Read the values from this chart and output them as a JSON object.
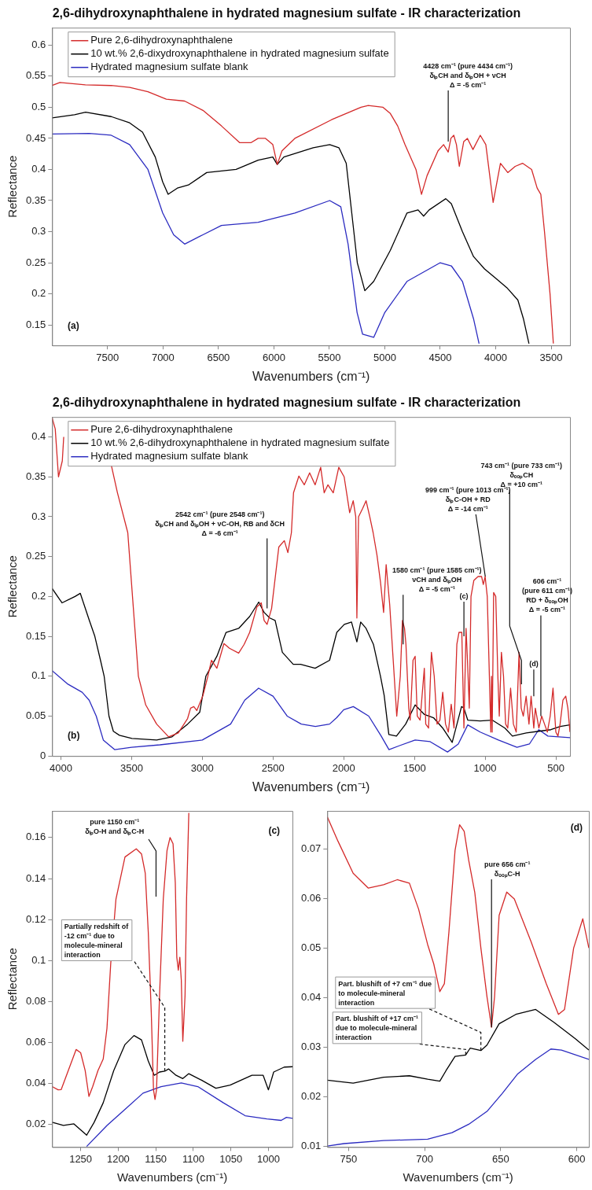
{
  "chart_data": [
    {
      "type": "line",
      "title": "2,6-dihydroxynaphthalene in hydrated magnesium sulfate - IR characterization",
      "xlabel": "Wavenumbers (cm⁻¹)",
      "ylabel": "Reflectance",
      "xlim": [
        8000,
        3330
      ],
      "ylim": [
        0.117,
        0.628
      ],
      "xticks": [
        7500,
        7000,
        6500,
        6000,
        5500,
        5000,
        4500,
        4000,
        3500
      ],
      "yticks": [
        0.15,
        0.2,
        0.25,
        0.3,
        0.35,
        0.4,
        0.45,
        0.5,
        0.55,
        0.6
      ],
      "legend": "top left",
      "annotations": [
        {
          "text": "4428 cm⁻¹ (pure 4434 cm⁻¹)\nδᵢₚCH and δᵢₚOH + νCH\nΔ = -5 cm⁻¹",
          "x": 4428,
          "y": 0.445
        },
        "(a)"
      ],
      "series": [
        {
          "name": "Pure 2,6-dihydroxynaphthalene",
          "color": "#d42a2a",
          "x": [
            8000,
            7930,
            7700,
            7467,
            7300,
            7136,
            6970,
            6805,
            6640,
            6473,
            6308,
            6208,
            6142,
            6076,
            6010,
            5970,
            5927,
            5811,
            5480,
            5215,
            5149,
            5016,
            4950,
            4884,
            4818,
            4719,
            4669,
            4619,
            4520,
            4470,
            4428,
            4404,
            4378,
            4354,
            4328,
            4288,
            4255,
            4205,
            4139,
            4089,
            4023,
            3957,
            3891,
            3824,
            3758,
            3676,
            3626,
            3593,
            3560,
            3510,
            3480
          ],
          "values": [
            0.535,
            0.54,
            0.536,
            0.535,
            0.532,
            0.525,
            0.513,
            0.51,
            0.495,
            0.47,
            0.443,
            0.443,
            0.45,
            0.45,
            0.44,
            0.408,
            0.43,
            0.45,
            0.48,
            0.5,
            0.503,
            0.5,
            0.49,
            0.47,
            0.44,
            0.4,
            0.36,
            0.39,
            0.43,
            0.44,
            0.428,
            0.45,
            0.455,
            0.44,
            0.405,
            0.445,
            0.45,
            0.432,
            0.455,
            0.44,
            0.347,
            0.41,
            0.395,
            0.405,
            0.41,
            0.4,
            0.37,
            0.36,
            0.3,
            0.2,
            0.12
          ]
        },
        {
          "name": "10 wt.% 2,6-dixydroxynaphthalene in hydrated magnesium sulfate",
          "color": "#000000",
          "x": [
            8000,
            7798,
            7698,
            7467,
            7301,
            7185,
            7070,
            7003,
            6954,
            6871,
            6771,
            6606,
            6341,
            6142,
            6010,
            5970,
            5910,
            5646,
            5497,
            5414,
            5348,
            5298,
            5248,
            5180,
            5100,
            4950,
            4800,
            4700,
            4650,
            4600,
            4450,
            4400,
            4300,
            4200,
            4100,
            4000,
            3900,
            3800,
            3750,
            3700
          ],
          "values": [
            0.483,
            0.488,
            0.492,
            0.485,
            0.475,
            0.46,
            0.42,
            0.38,
            0.36,
            0.37,
            0.375,
            0.395,
            0.4,
            0.415,
            0.42,
            0.408,
            0.42,
            0.435,
            0.44,
            0.435,
            0.41,
            0.33,
            0.25,
            0.205,
            0.22,
            0.27,
            0.33,
            0.335,
            0.325,
            0.335,
            0.353,
            0.345,
            0.3,
            0.26,
            0.24,
            0.225,
            0.21,
            0.19,
            0.16,
            0.12
          ]
        },
        {
          "name": "Hydrated magnesium sulfate blank",
          "color": "#2b2bc0",
          "x": [
            8000,
            7665,
            7467,
            7301,
            7136,
            7003,
            6904,
            6805,
            6640,
            6473,
            6142,
            5811,
            5497,
            5397,
            5331,
            5250,
            5200,
            5100,
            5000,
            4800,
            4500,
            4400,
            4300,
            4200,
            4150
          ],
          "values": [
            0.457,
            0.458,
            0.455,
            0.44,
            0.4,
            0.33,
            0.295,
            0.28,
            0.295,
            0.31,
            0.315,
            0.33,
            0.35,
            0.34,
            0.28,
            0.17,
            0.135,
            0.13,
            0.17,
            0.22,
            0.25,
            0.245,
            0.22,
            0.16,
            0.12
          ]
        }
      ]
    },
    {
      "type": "line",
      "title": "2,6-dihydroxynaphthalene in hydrated magnesium sulfate - IR characterization",
      "xlabel": "Wavenumbers (cm⁻¹)",
      "ylabel": "Reflectance",
      "xlim": [
        4062,
        400
      ],
      "ylim": [
        0,
        0.425
      ],
      "xticks": [
        4000,
        3500,
        3000,
        2500,
        2000,
        1500,
        1000,
        500
      ],
      "yticks": [
        0,
        0.05,
        0.1,
        0.15,
        0.2,
        0.25,
        0.3,
        0.35,
        0.4
      ],
      "legend": "top left",
      "annotations": [
        {
          "text": "2542 cm⁻¹ (pure 2548 cm⁻¹)\nδᵢₚCH and δᵢₚOH + νC-OH, RB and δCH\nΔ = -6 cm⁻¹",
          "x": 2542,
          "y": 0.185
        },
        {
          "text": "1580 cm⁻¹ (pure 1585 cm⁻¹)\nνCH and δᵢₚOH\nΔ = -5 cm⁻¹",
          "x": 1580,
          "y": 0.14
        },
        {
          "text": "999 cm⁻¹ (pure 1013 cm⁻¹)\nδᵢₚC-OH + RD\nΔ = -14 cm⁻¹",
          "x": 999,
          "y": 0.225
        },
        {
          "text": "743 cm⁻¹ (pure 733 cm⁻¹)\nδₒₒₚCH\nΔ = +10 cm⁻¹",
          "x": 743,
          "y": 0.09
        },
        {
          "text": "606 cm⁻¹\n(pure 611 cm⁻¹)\nRD + δₒₒₚOH\nΔ = -5 cm⁻¹",
          "x": 606,
          "y": 0.05
        },
        {
          "text": "(c)",
          "x": 1150,
          "y": 0.15
        },
        {
          "text": "(d)",
          "x": 656,
          "y": 0.075
        },
        "(b)"
      ],
      "series": [
        {
          "name": "Pure 2,6-dihydroxynaphthalene",
          "color": "#d42a2a",
          "x": [
            4062,
            4040,
            4017,
            3990,
            3980,
            3800,
            3644,
            3600,
            3527,
            3452,
            3400,
            3323,
            3238,
            3170,
            3104,
            3083,
            3060,
            3039,
            2995,
            2961,
            2935,
            2897,
            2847,
            2808,
            2743,
            2704,
            2665,
            2614,
            2583,
            2563,
            2542,
            2510,
            2459,
            2420,
            2395,
            2370,
            2355,
            2317,
            2279,
            2241,
            2202,
            2163,
            2138,
            2112,
            2074,
            2035,
            1997,
            1958,
            1933,
            1915,
            1907,
            1895,
            1867,
            1842,
            1816,
            1792,
            1765,
            1740,
            1718,
            1700,
            1675,
            1650,
            1625,
            1600,
            1585,
            1570,
            1560,
            1540,
            1530,
            1510,
            1495,
            1480,
            1460,
            1430,
            1420,
            1400,
            1380,
            1360,
            1340,
            1320,
            1300,
            1280,
            1260,
            1240,
            1220,
            1200,
            1185,
            1165,
            1150,
            1135,
            1125,
            1112,
            1100,
            1080,
            1050,
            1025,
            1013,
            1000,
            985,
            970,
            960,
            955,
            950,
            940,
            925,
            910,
            900,
            885,
            870,
            855,
            840,
            820,
            800,
            780,
            760,
            745,
            730,
            710,
            690,
            675,
            656,
            645,
            620,
            600,
            580,
            560,
            540,
            520,
            500,
            485,
            470,
            450,
            430,
            415,
            400
          ],
          "values": [
            0.424,
            0.41,
            0.35,
            0.37,
            0.4,
            null,
            0.365,
            0.33,
            0.28,
            0.1,
            0.064,
            0.04,
            0.024,
            0.029,
            0.047,
            0.06,
            0.062,
            0.057,
            0.076,
            0.1,
            0.12,
            0.11,
            0.141,
            0.135,
            0.129,
            0.14,
            0.155,
            0.187,
            0.192,
            0.17,
            0.165,
            0.185,
            0.262,
            0.27,
            0.255,
            0.28,
            0.33,
            0.351,
            0.34,
            0.355,
            0.34,
            0.362,
            0.33,
            0.34,
            0.33,
            0.362,
            0.35,
            0.305,
            0.32,
            0.3,
            0.173,
            0.3,
            0.31,
            0.32,
            0.3,
            0.28,
            0.252,
            0.218,
            0.18,
            0.24,
            0.19,
            0.12,
            0.05,
            0.1,
            0.17,
            0.16,
            0.14,
            0.06,
            0.045,
            0.12,
            0.125,
            0.05,
            0.045,
            0.11,
            0.04,
            0.035,
            0.13,
            0.1,
            0.04,
            0.045,
            0.08,
            0.04,
            0.03,
            0.065,
            0.035,
            0.14,
            0.155,
            0.155,
            0.035,
            0.16,
            0.12,
            0.06,
            0.2,
            0.22,
            0.225,
            0.225,
            0.215,
            0.225,
            0.2,
            0.1,
            0.03,
            0.1,
            0.03,
            0.205,
            0.2,
            0.1,
            0.05,
            0.13,
            0.1,
            0.04,
            0.035,
            0.085,
            0.04,
            0.03,
            0.13,
            0.06,
            0.05,
            0.075,
            0.04,
            0.075,
            0.035,
            0.06,
            0.035,
            0.05,
            0.04,
            0.03,
            0.05,
            0.085,
            0.03,
            0.025,
            0.04,
            0.07,
            0.075,
            0.06,
            0.03
          ]
        },
        {
          "name": "10 wt.% 2,6-dihydroxynaphthalene in hydrated magnesium sulfate",
          "color": "#000000",
          "x": [
            4062,
            3992,
            3900,
            3863,
            3799,
            3760,
            3720,
            3694,
            3660,
            3629,
            3586,
            3498,
            3323,
            3214,
            3104,
            3018,
            2975,
            2897,
            2832,
            2743,
            2665,
            2601,
            2563,
            2523,
            2485,
            2434,
            2357,
            2305,
            2202,
            2100,
            2049,
            1996,
            1945,
            1907,
            1880,
            1842,
            1790,
            1740,
            1714,
            1681,
            1627,
            1562,
            1495,
            1429,
            1365,
            1300,
            1233,
            1167,
            1150,
            1123,
            1035,
            950,
            860,
            807,
            709,
            621,
            535,
            469,
            400
          ],
          "values": [
            0.21,
            0.192,
            0.2,
            0.204,
            0.17,
            0.15,
            0.12,
            0.1,
            0.05,
            0.031,
            0.026,
            0.022,
            0.02,
            0.024,
            0.04,
            0.055,
            0.1,
            0.125,
            0.155,
            0.16,
            0.175,
            0.193,
            0.18,
            0.173,
            0.17,
            0.13,
            0.115,
            0.115,
            0.11,
            0.12,
            0.155,
            0.165,
            0.168,
            0.143,
            0.168,
            0.16,
            0.14,
            0.1,
            0.076,
            0.027,
            0.025,
            0.04,
            0.064,
            0.052,
            0.048,
            0.035,
            0.017,
            0.062,
            0.06,
            0.045,
            0.044,
            0.045,
            0.035,
            0.025,
            0.029,
            0.031,
            0.033,
            0.037,
            0.039
          ]
        },
        {
          "name": "Hydrated magnesium sulfate blank",
          "color": "#2b2bc0",
          "x": [
            4062,
            3950,
            3850,
            3800,
            3750,
            3700,
            3620,
            3500,
            3300,
            3000,
            2800,
            2700,
            2602,
            2500,
            2400,
            2300,
            2200,
            2100,
            2050,
            2000,
            1932,
            1823,
            1735,
            1680,
            1605,
            1495,
            1389,
            1266,
            1190,
            1123,
            1035,
            906,
            775,
            687,
            621,
            556,
            400
          ],
          "values": [
            0.107,
            0.09,
            0.08,
            0.07,
            0.05,
            0.02,
            0.008,
            0.011,
            0.014,
            0.02,
            0.04,
            0.07,
            0.085,
            0.075,
            0.05,
            0.04,
            0.037,
            0.04,
            0.048,
            0.058,
            0.062,
            0.05,
            0.025,
            0.008,
            0.013,
            0.02,
            0.018,
            0.005,
            0.015,
            0.039,
            0.03,
            0.02,
            0.011,
            0.015,
            0.033,
            0.025,
            0.023
          ]
        }
      ]
    },
    {
      "type": "line",
      "xlabel": "Wavenumbers (cm⁻¹)",
      "ylabel": "Reflectance",
      "xlim": [
        1288,
        968
      ],
      "ylim": [
        0.009,
        0.173
      ],
      "xticks": [
        1250,
        1200,
        1150,
        1100,
        1050,
        1000
      ],
      "yticks": [
        0.02,
        0.04,
        0.06,
        0.08,
        0.1,
        0.12,
        0.14,
        0.16
      ],
      "annotations": [
        "pure 1150 cm⁻¹\nδᵢₚO-H and δᵢₚC-H",
        {
          "text": "Partially redshift of\n-12 cm⁻¹ due to\nmolecule-mineral\ninteraction",
          "x": 1138,
          "y": 0.046
        },
        "(c)"
      ],
      "series": [
        {
          "color": "#d42a2a",
          "x": [
            1288,
            1280,
            1276,
            1268,
            1256,
            1250,
            1244,
            1239,
            1234,
            1227,
            1220,
            1215,
            1210,
            1203,
            1191,
            1176,
            1169,
            1164,
            1160,
            1156,
            1153,
            1151,
            1149,
            1145,
            1140,
            1135,
            1131,
            1127,
            1124,
            1122,
            1120,
            1118,
            1116,
            1114,
            1111,
            1109,
            1106
          ],
          "values": [
            0.0385,
            0.0369,
            0.037,
            0.0448,
            0.0566,
            0.055,
            0.0463,
            0.0337,
            0.0385,
            0.0463,
            0.0519,
            0.0669,
            0.0984,
            0.13,
            0.1505,
            0.1545,
            0.152,
            0.1426,
            0.114,
            0.0748,
            0.0369,
            0.0322,
            0.0369,
            0.0826,
            0.13,
            0.1537,
            0.16,
            0.157,
            0.138,
            0.1016,
            0.0953,
            0.1016,
            0.0905,
            0.0606,
            0.083,
            0.13,
            0.172
          ]
        },
        {
          "color": "#000000",
          "x": [
            1288,
            1273,
            1259,
            1242,
            1232,
            1220,
            1206,
            1191,
            1179,
            1169,
            1160,
            1152,
            1145,
            1138,
            1133,
            1123,
            1114,
            1106,
            1089,
            1070,
            1051,
            1022,
            1007,
            1000,
            993,
            979,
            968
          ],
          "values": [
            0.0211,
            0.0196,
            0.0203,
            0.0148,
            0.0211,
            0.0306,
            0.0463,
            0.059,
            0.0634,
            0.0613,
            0.051,
            0.044,
            0.0456,
            0.046,
            0.0471,
            0.044,
            0.0424,
            0.0448,
            0.0416,
            0.0377,
            0.0392,
            0.044,
            0.044,
            0.0369,
            0.0456,
            0.048,
            0.0482
          ]
        },
        {
          "color": "#2b2bc0",
          "x": [
            1242,
            1215,
            1191,
            1167,
            1143,
            1116,
            1094,
            1060,
            1031,
            1002,
            983,
            976,
            968
          ],
          "values": [
            0.0093,
            0.0195,
            0.0274,
            0.0353,
            0.0385,
            0.0403,
            0.0385,
            0.0306,
            0.0243,
            0.0227,
            0.022,
            0.0235,
            0.023
          ]
        }
      ]
    },
    {
      "type": "line",
      "xlabel": "Wavenumbers (cm⁻¹)",
      "xlim": [
        764,
        592
      ],
      "ylim": [
        0.0098,
        0.0777
      ],
      "xticks": [
        750,
        700,
        650,
        600
      ],
      "yticks": [
        0.01,
        0.02,
        0.03,
        0.04,
        0.05,
        0.06,
        0.07
      ],
      "annotations": [
        {
          "text": "pure 656 cm⁻¹\nδₒₒₚC-H",
          "x": 656,
          "y": 0.034
        },
        {
          "text": "Part. blushift of +7 cm⁻¹ due\nto molecule-mineral\ninteraction",
          "x": 663,
          "y": 0.0293
        },
        {
          "text": "Part. blushift of +17 cm⁻¹\ndue to molecule-mineral\ninteraction",
          "x": 673,
          "y": 0.0284
        },
        "(d)"
      ],
      "series": [
        {
          "color": "#d42a2a",
          "x": [
            764,
            757,
            747,
            737,
            727,
            718,
            710,
            704,
            698,
            694,
            690,
            687,
            684,
            680,
            677,
            674,
            671,
            667,
            663,
            659,
            656,
            654,
            651,
            646,
            641,
            630,
            620,
            612,
            608,
            602,
            596,
            592
          ],
          "values": [
            0.0765,
            0.0716,
            0.0651,
            0.0621,
            0.0628,
            0.0638,
            0.0631,
            0.0579,
            0.0507,
            0.0468,
            0.0412,
            0.0428,
            0.0533,
            0.0697,
            0.0749,
            0.0736,
            0.0677,
            0.0612,
            0.05,
            0.0402,
            0.034,
            0.0402,
            0.0566,
            0.0613,
            0.0599,
            0.0513,
            0.0428,
            0.0366,
            0.0376,
            0.05,
            0.0559,
            0.05
          ]
        },
        {
          "color": "#000000",
          "x": [
            764,
            747,
            727,
            710,
            698,
            690,
            686,
            680,
            673,
            670,
            663,
            659,
            651,
            640,
            627,
            615,
            601,
            592
          ],
          "values": [
            0.0233,
            0.0227,
            0.0239,
            0.0242,
            0.0235,
            0.0231,
            0.0252,
            0.0281,
            0.0284,
            0.0298,
            0.0293,
            0.0304,
            0.0347,
            0.0366,
            0.0376,
            0.035,
            0.0317,
            0.0294
          ]
        },
        {
          "color": "#2b2bc0",
          "x": [
            764,
            753,
            727,
            698,
            682,
            671,
            659,
            649,
            639,
            627,
            617,
            610,
            592
          ],
          "values": [
            0.01,
            0.0105,
            0.0111,
            0.0114,
            0.0127,
            0.0144,
            0.017,
            0.0206,
            0.0245,
            0.0275,
            0.0296,
            0.0294,
            0.0275
          ]
        }
      ]
    }
  ]
}
